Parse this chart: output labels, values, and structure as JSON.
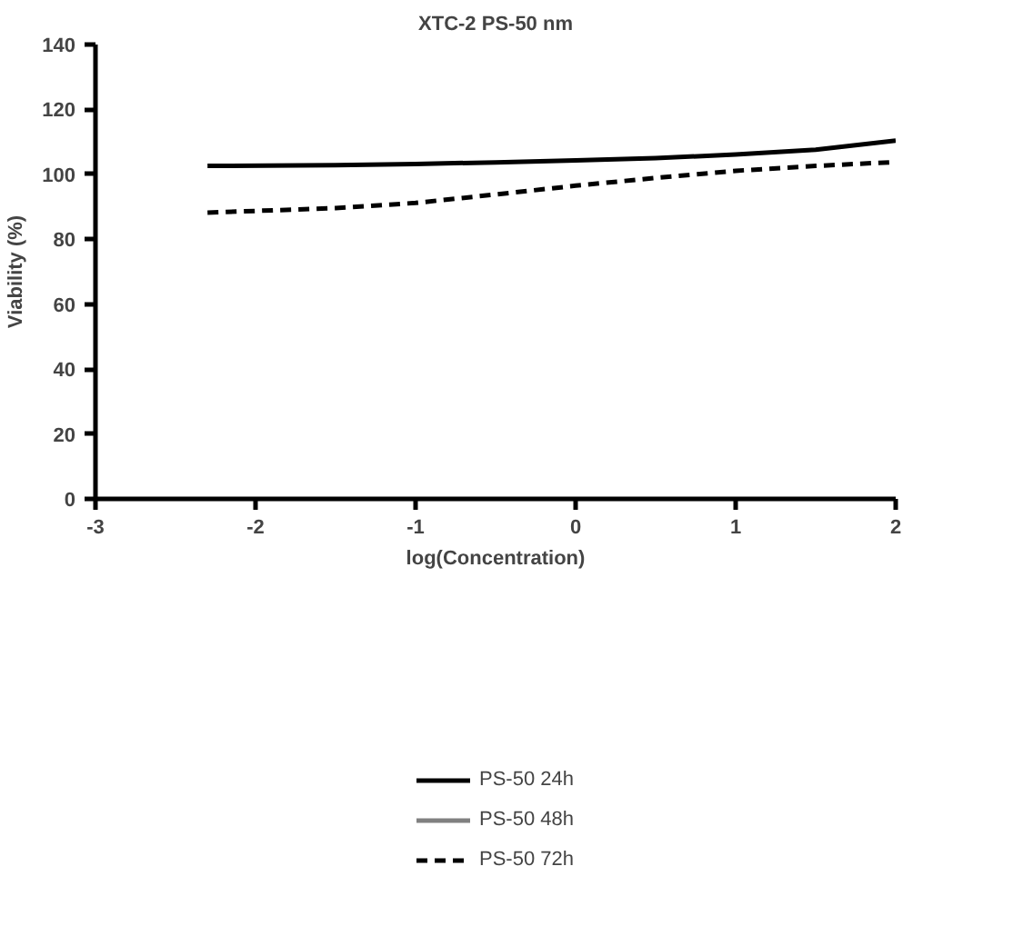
{
  "chart_data": {
    "type": "line",
    "title": "XTC-2 PS-50 nm",
    "xlabel": "log(Concentration)",
    "ylabel": "Viability (%)",
    "x": [
      -2.3,
      -1.5,
      -1,
      -0.5,
      0,
      0.5,
      1,
      1.5,
      2
    ],
    "series": [
      {
        "name": "PS-50 24h",
        "color": "#000000",
        "line_style": "solid",
        "values": [
          102.6,
          102.8,
          103.2,
          103.7,
          104.3,
          105,
          106.1,
          107.6,
          110.4
        ]
      },
      {
        "name": "PS-50 48h",
        "color": "#808080",
        "line_style": "solid",
        "values": [
          null,
          null,
          null,
          null,
          null,
          null,
          null,
          null,
          null
        ]
      },
      {
        "name": "PS-50 72h",
        "color": "#000000",
        "line_style": "dashed",
        "values": [
          88.2,
          89.6,
          91.2,
          93.8,
          96.5,
          98.9,
          101.1,
          102.6,
          103.8
        ]
      }
    ],
    "xlim": [
      -3,
      2
    ],
    "xticks": [
      -3,
      -2,
      -1,
      0,
      1,
      2
    ],
    "ylim": [
      0,
      140
    ],
    "yticks": [
      0,
      20,
      40,
      60,
      80,
      100,
      120,
      140
    ],
    "grid": false,
    "legend": "bottom",
    "marker": "none"
  }
}
